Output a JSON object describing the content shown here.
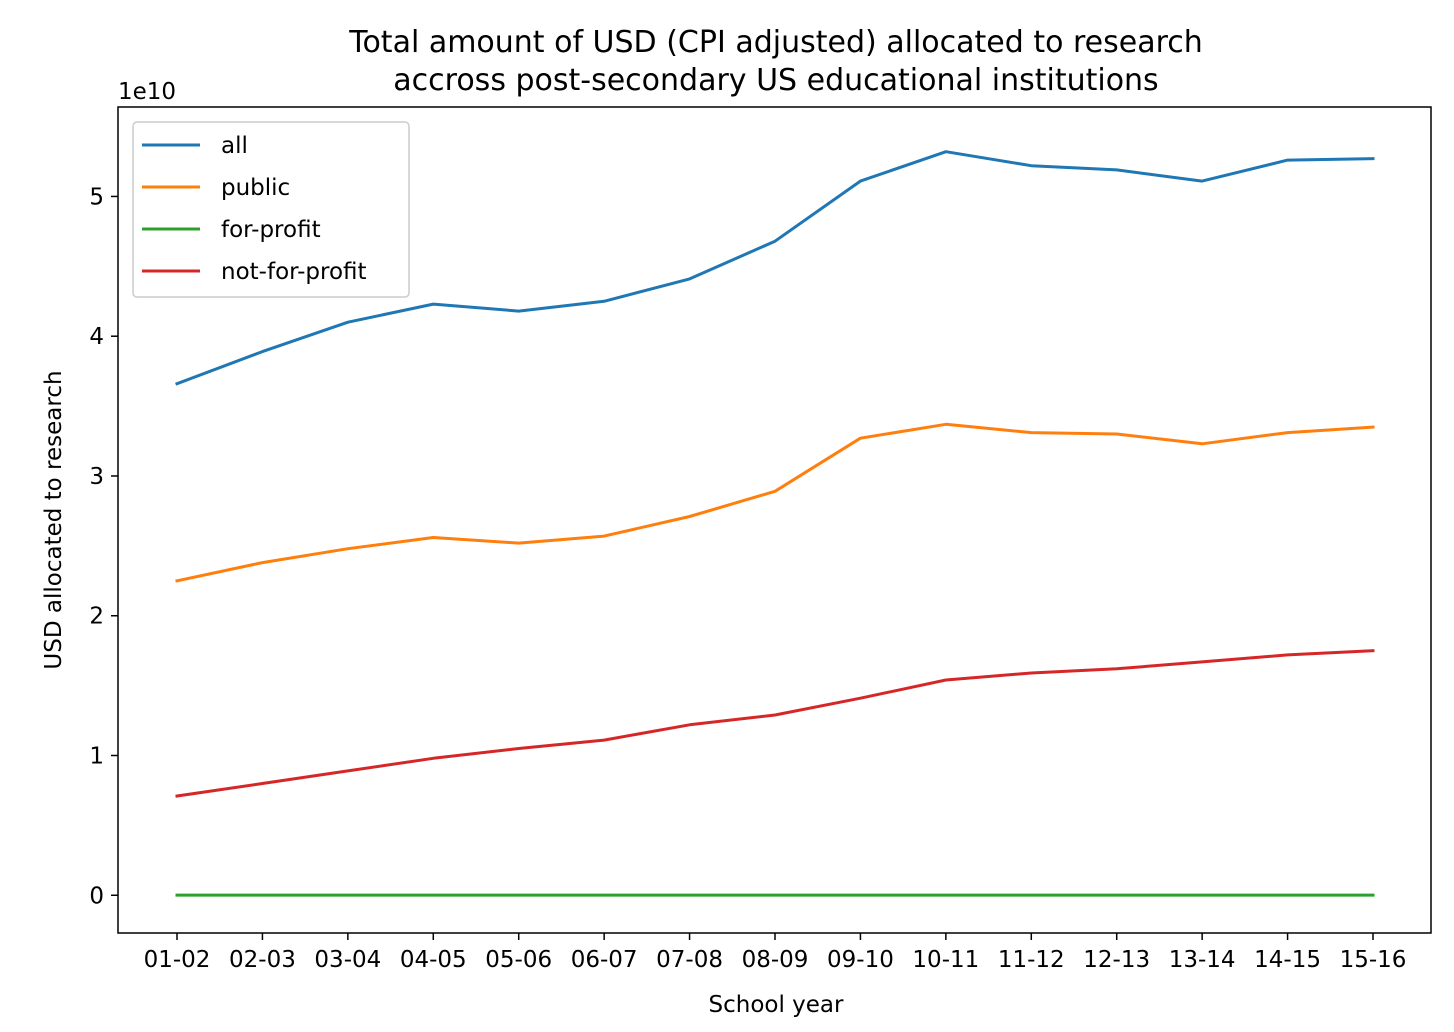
{
  "chart_data": {
    "type": "line",
    "title": "Total amount of USD (CPI adjusted) allocated to research",
    "subtitle": "accross post-secondary US educational institutions",
    "xlabel": "School year",
    "ylabel": "USD allocated to research",
    "y_scale_label": "1e10",
    "ylim": [
      -2.7,
      56.4
    ],
    "y_unit_multiplier": 10000000000.0,
    "y_ticks": [
      0,
      1,
      2,
      3,
      4,
      5
    ],
    "grid": false,
    "legend_position": "top-left",
    "categories": [
      "01-02",
      "02-03",
      "03-04",
      "04-05",
      "05-06",
      "06-07",
      "07-08",
      "08-09",
      "09-10",
      "10-11",
      "11-12",
      "12-13",
      "13-14",
      "14-15",
      "15-16"
    ],
    "series": [
      {
        "name": "all",
        "color": "#1f77b4",
        "values": [
          3.66,
          3.89,
          4.1,
          4.23,
          4.18,
          4.25,
          4.41,
          4.68,
          5.11,
          5.32,
          5.22,
          5.19,
          5.11,
          5.26,
          5.27
        ]
      },
      {
        "name": "public",
        "color": "#ff7f0e",
        "values": [
          2.25,
          2.38,
          2.48,
          2.56,
          2.52,
          2.57,
          2.71,
          2.89,
          3.27,
          3.37,
          3.31,
          3.3,
          3.23,
          3.31,
          3.35
        ]
      },
      {
        "name": "for-profit",
        "color": "#2ca02c",
        "values": [
          0.001,
          0.001,
          0.001,
          0.001,
          0.001,
          0.001,
          0.001,
          0.001,
          0.001,
          0.001,
          0.001,
          0.001,
          0.001,
          0.001,
          0.001
        ]
      },
      {
        "name": "not-for-profit",
        "color": "#d62728",
        "values": [
          0.71,
          0.8,
          0.89,
          0.98,
          1.05,
          1.11,
          1.22,
          1.29,
          1.41,
          1.54,
          1.59,
          1.62,
          1.67,
          1.72,
          1.75
        ]
      }
    ]
  }
}
